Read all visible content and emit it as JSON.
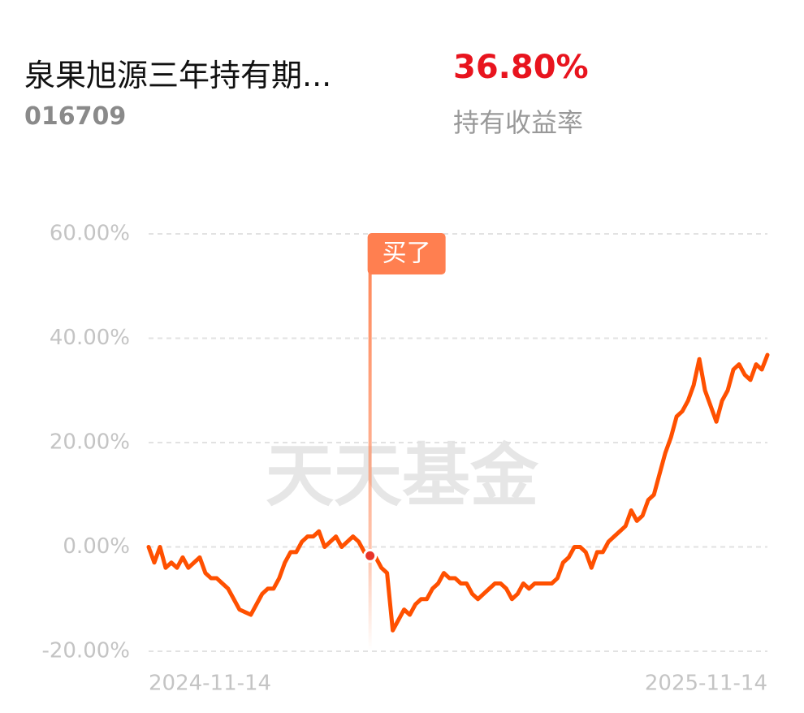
{
  "header": {
    "title": "泉果旭源三年持有期...",
    "code": "016709",
    "return_value": "36.80%",
    "return_label": "持有收益率"
  },
  "chart_data": {
    "type": "line",
    "watermark": "天天基金",
    "annotation": {
      "text": "买了"
    },
    "categories": [
      "2024-11-14",
      null,
      null,
      null,
      null,
      null,
      null,
      null,
      null,
      null,
      null,
      null,
      null,
      null,
      null,
      null,
      null,
      null,
      null,
      null,
      null,
      null,
      null,
      null,
      null,
      null,
      null,
      null,
      null,
      null,
      null,
      null,
      null,
      null,
      null,
      null,
      null,
      null,
      null,
      null,
      null,
      null,
      null,
      null,
      null,
      null,
      null,
      null,
      null,
      null,
      null,
      null,
      null,
      null,
      null,
      null,
      null,
      null,
      null,
      null,
      null,
      null,
      null,
      null,
      null,
      null,
      null,
      null,
      null,
      null,
      null,
      null,
      null,
      null,
      null,
      null,
      null,
      null,
      null,
      null,
      null,
      null,
      null,
      null,
      null,
      null,
      null,
      null,
      null,
      null,
      null,
      null,
      null,
      null,
      null,
      null,
      null,
      null,
      null,
      null,
      null,
      null,
      null,
      null,
      null,
      null,
      null,
      null,
      null,
      "2025-11-14"
    ],
    "series": [
      {
        "name": "持有收益率",
        "color": "#ff5000",
        "values": [
          0,
          -3,
          0,
          -4,
          -3,
          -4,
          -2,
          -4,
          -3,
          -2,
          -5,
          -6,
          -6,
          -7,
          -8,
          -10,
          -12,
          -12.5,
          -13,
          -11,
          -9,
          -8,
          -8,
          -6,
          -3,
          -1,
          -1,
          1,
          2,
          2,
          3,
          0,
          1,
          2,
          0,
          1,
          2,
          1,
          -1,
          -1.7,
          -2,
          -4,
          -5,
          -16,
          -14,
          -12,
          -13,
          -11,
          -10,
          -10,
          -8,
          -7,
          -5,
          -6,
          -6,
          -7,
          -7,
          -9,
          -10,
          -9,
          -8,
          -7,
          -7,
          -8,
          -10,
          -9,
          -7,
          -8,
          -7,
          -7,
          -7,
          -7,
          -6,
          -3,
          -2,
          0,
          0,
          -1,
          -4,
          -1,
          -1,
          1,
          2,
          3,
          4,
          7,
          5,
          6,
          9,
          10,
          14,
          18,
          21,
          25,
          26,
          28,
          31,
          36,
          30,
          27,
          24,
          28,
          30,
          34,
          35,
          33,
          32,
          35,
          34,
          36.8
        ]
      }
    ],
    "ylim": [
      -20,
      60
    ],
    "yticks": [
      {
        "value": -20,
        "label": "-20.00%"
      },
      {
        "value": 0,
        "label": "0.00%"
      },
      {
        "value": 20,
        "label": "20.00%"
      },
      {
        "value": 40,
        "label": "40.00%"
      },
      {
        "value": 60,
        "label": "60.00%"
      }
    ],
    "grid": true
  }
}
